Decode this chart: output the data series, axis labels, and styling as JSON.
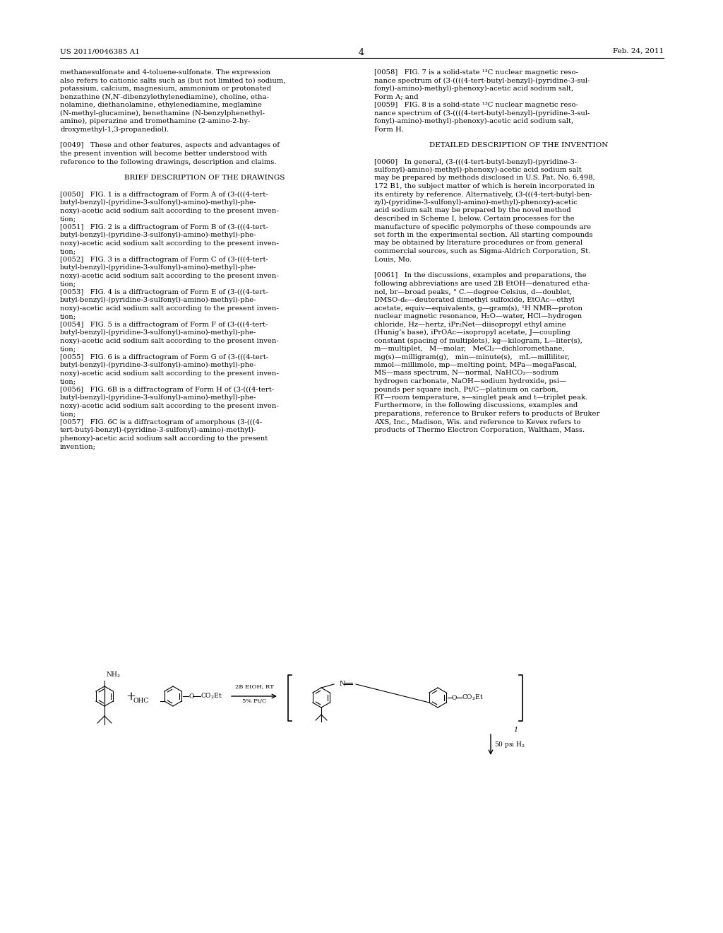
{
  "background_color": "#ffffff",
  "header_left": "US 2011/0046385 A1",
  "header_right": "Feb. 24, 2011",
  "page_number": "4",
  "left_column_text": [
    "methanesulfonate and 4-toluene-sulfonate. The expression",
    "also refers to cationic salts such as (but not limited to) sodium,",
    "potassium, calcium, magnesium, ammonium or protonated",
    "benzathine (N,N′-dibenzylethylenediamine), choline, etha-",
    "nolamine, diethanolamine, ethylenediamine, meglamine",
    "(N-methyl-glucamine), benethamine (N-benzylphenethyl-",
    "amine), piperazine and tromethamine (2-amino-2-hy-",
    "droxymethyl-1,3-propanediol).",
    "",
    "[0049]   These and other features, aspects and advantages of",
    "the present invention will become better understood with",
    "reference to the following drawings, description and claims.",
    "",
    "BRIEF DESCRIPTION OF THE DRAWINGS",
    "",
    "[0050]   FIG. 1 is a diffractogram of Form A of (3-(((4-tert-",
    "butyl-benzyl)-(pyridine-3-sulfonyl)-amino)-methyl)-phe-",
    "noxy)-acetic acid sodium salt according to the present inven-",
    "tion;",
    "[0051]   FIG. 2 is a diffractogram of Form B of (3-(((4-tert-",
    "butyl-benzyl)-(pyridine-3-sulfonyl)-amino)-methyl)-phe-",
    "noxy)-acetic acid sodium salt according to the present inven-",
    "tion;",
    "[0052]   FIG. 3 is a diffractogram of Form C of (3-(((4-tert-",
    "butyl-benzyl)-(pyridine-3-sulfonyl)-amino)-methyl)-phe-",
    "noxy)-acetic acid sodium salt according to the present inven-",
    "tion;",
    "[0053]   FIG. 4 is a diffractogram of Form E of (3-(((4-tert-",
    "butyl-benzyl)-(pyridine-3-sulfonyl)-amino)-methyl)-phe-",
    "noxy)-acetic acid sodium salt according to the present inven-",
    "tion;",
    "[0054]   FIG. 5 is a diffractogram of Form F of (3-(((4-tert-",
    "butyl-benzyl)-(pyridine-3-sulfonyl)-amino)-methyl)-phe-",
    "noxy)-acetic acid sodium salt according to the present inven-",
    "tion;",
    "[0055]   FIG. 6 is a diffractogram of Form G of (3-(((4-tert-",
    "butyl-benzyl)-(pyridine-3-sulfonyl)-amino)-methyl)-phe-",
    "noxy)-acetic acid sodium salt according to the present inven-",
    "tion;",
    "[0056]   FIG. 6B is a diffractogram of Form H of (3-(((4-tert-",
    "butyl-benzyl)-(pyridine-3-sulfonyl)-amino)-methyl)-phe-",
    "noxy)-acetic acid sodium salt according to the present inven-",
    "tion;",
    "[0057]   FIG. 6C is a diffractogram of amorphous (3-(((4-",
    "tert-butyl-benzyl)-(pyridine-3-sulfonyl)-amino)-methyl)-",
    "phenoxy)-acetic acid sodium salt according to the present",
    "invention;"
  ],
  "right_column_text": [
    "[0058]   FIG. 7 is a solid-state ¹³C nuclear magnetic reso-",
    "nance spectrum of (3-((((4-tert-butyl-benzyl)-(pyridine-3-sul-",
    "fonyl)-amino)-methyl)-phenoxy)-acetic acid sodium salt,",
    "Form A; and",
    "[0059]   FIG. 8 is a solid-state ¹³C nuclear magnetic reso-",
    "nance spectrum of (3-((((4-tert-butyl-benzyl)-(pyridine-3-sul-",
    "fonyl)-amino)-methyl)-phenoxy)-acetic acid sodium salt,",
    "Form H.",
    "",
    "DETAILED DESCRIPTION OF THE INVENTION",
    "",
    "[0060]   In general, (3-(((4-tert-butyl-benzyl)-(pyridine-3-",
    "sulfonyl)-amino)-methyl)-phenoxy)-acetic acid sodium salt",
    "may be prepared by methods disclosed in U.S. Pat. No. 6,498,",
    "172 B1, the subject matter of which is herein incorporated in",
    "its entirety by reference. Alternatively, (3-(((4-tert-butyl-ben-",
    "zyl)-(pyridine-3-sulfonyl)-amino)-methyl)-phenoxy)-acetic",
    "acid sodium salt may be prepared by the novel method",
    "described in Scheme I, below. Certain processes for the",
    "manufacture of specific polymorphs of these compounds are",
    "set forth in the experimental section. All starting compounds",
    "may be obtained by literature procedures or from general",
    "commercial sources, such as Sigma-Aldrich Corporation, St.",
    "Louis, Mo.",
    "",
    "[0061]   In the discussions, examples and preparations, the",
    "following abbreviations are used 2B EtOH—denatured etha-",
    "nol, br—broad peaks, ° C.—degree Celsius, d—doublet,",
    "DMSO-d₆—deuterated dimethyl sulfoxide, EtOAc—ethyl",
    "acetate, equiv—equivalents, g—gram(s), ¹H NMR—proton",
    "nuclear magnetic resonance, H₂O—water, HCl—hydrogen",
    "chloride, Hz—hertz, iPr₂Net—diisopropyl ethyl amine",
    "(Hunig’s base), iPrOAc—isopropyl acetate, J—coupling",
    "constant (spacing of multiplets), kg—kilogram, L—liter(s),",
    "m—multiplet,   M—molar,   MeCl₂—dichloromethane,",
    "mg(s)—milligram(g),   min—minute(s),   mL—milliliter,",
    "mmol—millimole, mp—melting point, MPa—megaPascal,",
    "MS—mass spectrum, N—normal, NaHCO₃—sodium",
    "hydrogen carbonate, NaOH—sodium hydroxide, psi—",
    "pounds per square inch, Pt/C—platinum on carbon,",
    "RT—room temperature, s—singlet peak and t—triplet peak.",
    "Furthermore, in the following discussions, examples and",
    "preparations, reference to Bruker refers to products of Bruker",
    "AXS, Inc., Madison, Wis. and reference to Kevex refers to",
    "products of Thermo Electron Corporation, Waltham, Mass."
  ],
  "font_size_body": 7.2,
  "font_size_header": 7.5,
  "font_size_section": 7.5,
  "font_size_page_num": 9.0
}
